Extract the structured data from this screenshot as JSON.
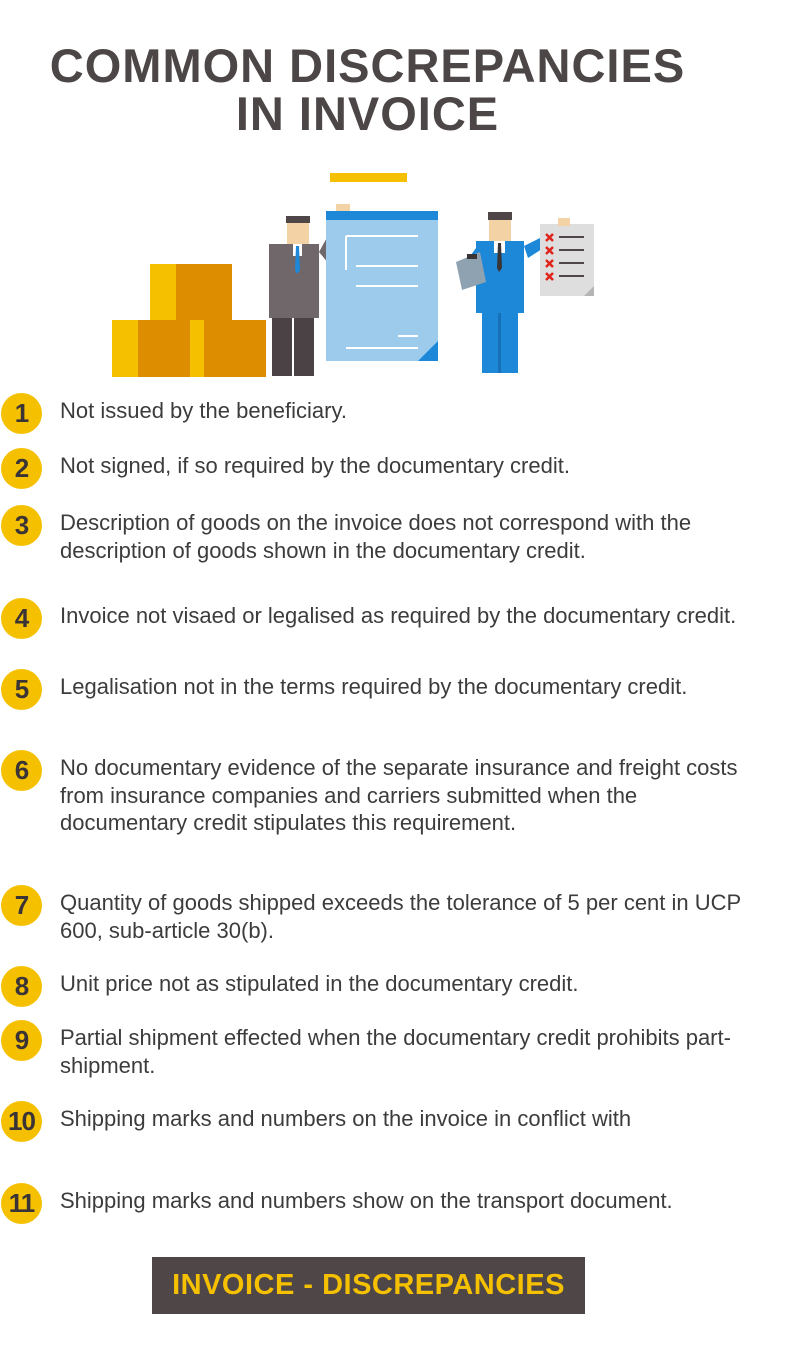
{
  "title": {
    "line1": "COMMON DISCREPANCIES",
    "line2": "IN INVOICE"
  },
  "colors": {
    "accent": "#f5c000",
    "dark": "#4e4647",
    "text": "#3c3c3c",
    "blue": "#1e88d8",
    "doc": "#9dcbec"
  },
  "items": [
    {
      "num": "1",
      "text": "Not issued by the beneficiary."
    },
    {
      "num": "2",
      "text": "Not signed, if so required by the documentary credit."
    },
    {
      "num": "3",
      "text": "Description of goods on the invoice does not correspond with the description of goods shown in the documentary credit."
    },
    {
      "num": "4",
      "text": "Invoice not visaed or legalised as required by the documentary credit."
    },
    {
      "num": "5",
      "text": "Legalisation not in the terms required by the documentary credit."
    },
    {
      "num": "6",
      "text": "No documentary evidence of the separate insurance and freight costs from insurance companies and carriers submitted when the documentary credit stipulates this requirement."
    },
    {
      "num": "7",
      "text": "Quantity of goods shipped exceeds the tolerance of 5 per cent in UCP 600, sub-article 30(b)."
    },
    {
      "num": "8",
      "text": "Unit price not as stipulated in the documentary credit."
    },
    {
      "num": "9",
      "text": "Partial shipment effected when the documentary credit prohibits part-shipment."
    },
    {
      "num": "10",
      "text": "Shipping marks and numbers on the invoice in conflict with"
    },
    {
      "num": "11",
      "text": "Shipping marks and numbers show on the transport document."
    }
  ],
  "footer": {
    "label": "INVOICE - DISCREPANCIES"
  }
}
